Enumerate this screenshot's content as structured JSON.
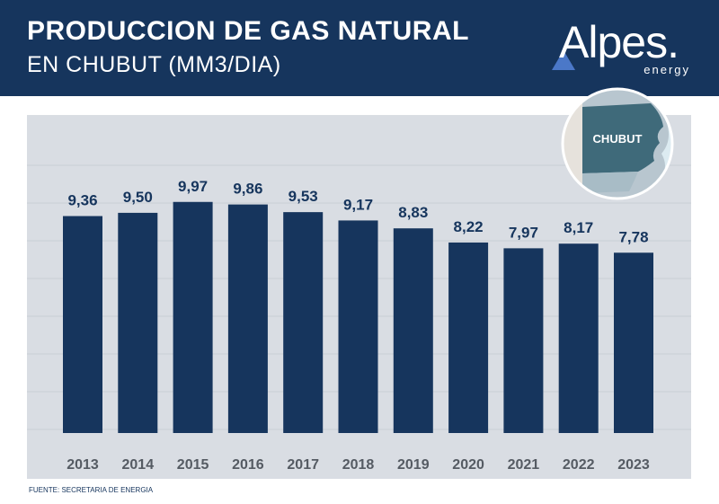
{
  "header": {
    "title": "PRODUCCION DE GAS NATURAL",
    "subtitle": "EN CHUBUT (MM3/DIA)"
  },
  "logo": {
    "word": "Alpes",
    "dot": ".",
    "sub": "energy"
  },
  "map": {
    "label": "CHUBUT"
  },
  "source": "FUENTE: SECRETARIA DE ENERGIA",
  "colors": {
    "header": "#16355d",
    "bar": "#16355d",
    "plot_bg": "#d9dde3",
    "map_highlight": "#3f6a7a"
  },
  "chart_data": {
    "type": "bar",
    "title": "PRODUCCION DE GAS NATURAL EN CHUBUT (MM3/DIA)",
    "categories": [
      "2013",
      "2014",
      "2015",
      "2016",
      "2017",
      "2018",
      "2019",
      "2020",
      "2021",
      "2022",
      "2023"
    ],
    "values": [
      9.36,
      9.5,
      9.97,
      9.86,
      9.53,
      9.17,
      8.83,
      8.22,
      7.97,
      8.17,
      7.78
    ],
    "value_labels": [
      "9,36",
      "9,50",
      "9,97",
      "9,86",
      "9,53",
      "9,17",
      "8,83",
      "8,22",
      "7,97",
      "8,17",
      "7,78"
    ],
    "xlabel": "",
    "ylabel": "",
    "ylim": [
      0,
      10
    ],
    "grid": true,
    "legend": "none"
  }
}
